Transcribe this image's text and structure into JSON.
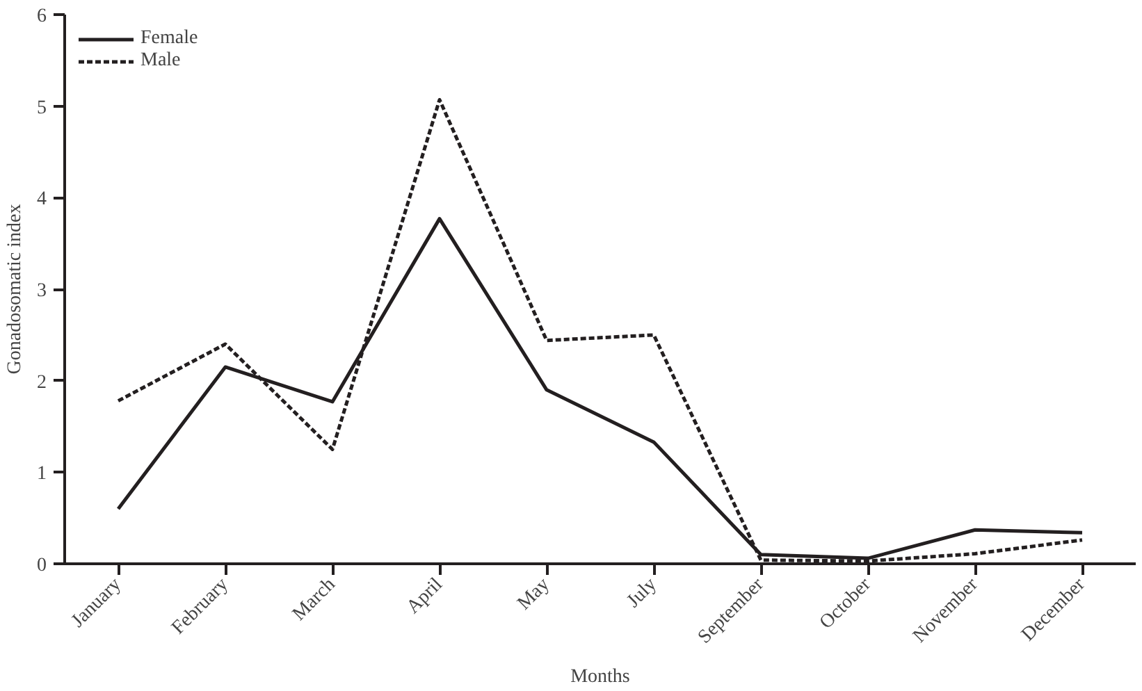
{
  "chart_data": {
    "type": "line",
    "xlabel": "Months",
    "ylabel": "Gonadosomatic index",
    "categories": [
      "January",
      "February",
      "March",
      "April",
      "May",
      "July",
      "September",
      "October",
      "November",
      "December"
    ],
    "series": [
      {
        "name": "Female",
        "color": "#231f20",
        "line_style": "solid",
        "values": [
          0.6,
          2.15,
          1.77,
          3.77,
          1.9,
          1.33,
          0.1,
          0.06,
          0.37,
          0.34
        ]
      },
      {
        "name": "Male",
        "color": "#231f20",
        "line_style": "dashed",
        "values": [
          1.78,
          2.4,
          1.25,
          5.07,
          2.44,
          2.5,
          0.04,
          0.03,
          0.11,
          0.26
        ]
      }
    ],
    "ylim": [
      0,
      6
    ],
    "yticks": [
      0,
      1,
      2,
      3,
      4,
      5,
      6
    ],
    "grid": false,
    "legend": "top left",
    "marker": "none"
  }
}
